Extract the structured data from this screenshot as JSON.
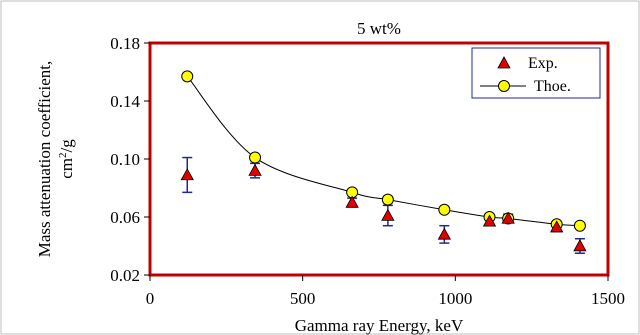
{
  "chart_data": {
    "type": "scatter",
    "title": "5 wt%",
    "xlabel": "Gamma ray Energy, keV",
    "ylabel_line1": "Mass attenuation coefficient,",
    "ylabel_line2_base": "cm",
    "ylabel_line2_sup": "2",
    "ylabel_line2_rest": "/g",
    "xlim": [
      0,
      1500
    ],
    "ylim": [
      0.02,
      0.18
    ],
    "xticks": [
      0,
      500,
      1000,
      1500
    ],
    "yticks": [
      0.02,
      0.06,
      0.1,
      0.14,
      0.18
    ],
    "xtick_labels": [
      "0",
      "500",
      "1000",
      "1500"
    ],
    "ytick_labels": [
      "0.02",
      "0.06",
      "0.10",
      "0.14",
      "0.18"
    ],
    "legend_position": "top-right",
    "series": [
      {
        "name": "Exp.",
        "marker": "triangle",
        "color": "#e00000",
        "errorbar_color": "#1f2c8f",
        "x": [
          122,
          344,
          662,
          779,
          964,
          1112,
          1173,
          1332,
          1408
        ],
        "y": [
          0.089,
          0.092,
          0.07,
          0.061,
          0.048,
          0.057,
          0.059,
          0.053,
          0.04
        ],
        "yerr": [
          0.012,
          0.005,
          0.003,
          0.007,
          0.006,
          0.003,
          0.003,
          0.003,
          0.005
        ]
      },
      {
        "name": "Thoe.",
        "marker": "circle",
        "color": "#ffff00",
        "line_color": "#000000",
        "x": [
          122,
          344,
          662,
          779,
          964,
          1112,
          1173,
          1332,
          1408
        ],
        "y": [
          0.157,
          0.101,
          0.077,
          0.072,
          0.065,
          0.06,
          0.059,
          0.055,
          0.054
        ]
      }
    ],
    "frame_color": "#c00000"
  }
}
